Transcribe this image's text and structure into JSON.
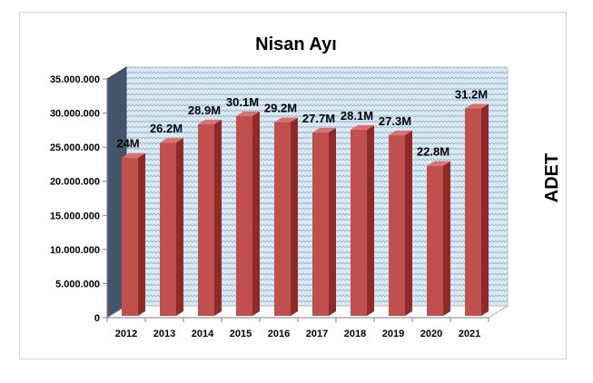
{
  "chart_data": {
    "type": "bar",
    "title": "Nisan Ayı",
    "xlabel": "",
    "ylabel": "ADET",
    "categories": [
      "2012",
      "2013",
      "2014",
      "2015",
      "2016",
      "2017",
      "2018",
      "2019",
      "2020",
      "2021"
    ],
    "values": [
      24000000,
      26200000,
      28900000,
      30100000,
      29200000,
      27700000,
      28100000,
      27300000,
      22800000,
      31200000
    ],
    "data_labels": [
      "24M",
      "26.2M",
      "28.9M",
      "30.1M",
      "29.2M",
      "27.7M",
      "28.1M",
      "27.3M",
      "22.8M",
      "31.2M"
    ],
    "ylim": [
      0,
      35000000
    ],
    "yticks": [
      0,
      5000000,
      10000000,
      15000000,
      20000000,
      25000000,
      30000000,
      35000000
    ],
    "ytick_labels": [
      "0",
      "5.000.000",
      "10.000.000",
      "15.000.000",
      "20.000.000",
      "25.000.000",
      "30.000.000",
      "35.000.000"
    ],
    "grid": false,
    "legend": "none",
    "colors": {
      "bar_front": "#c0504d",
      "bar_side": "#8e2a28",
      "bar_top": "#d9716e",
      "wall": "#dbe9f3",
      "side_wall": "#44546a"
    }
  }
}
